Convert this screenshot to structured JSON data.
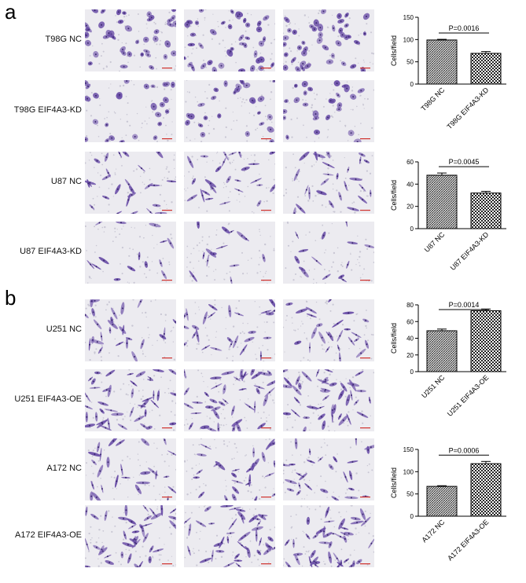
{
  "panels": [
    {
      "letter": "a",
      "rows": [
        {
          "label": "T98G NC",
          "density": "high",
          "shape": "round"
        },
        {
          "label": "T98G EIF4A3-KD",
          "density": "medium",
          "shape": "round"
        },
        {
          "label": "U87 NC",
          "density": "medium",
          "shape": "spindle"
        },
        {
          "label": "U87 EIF4A3-KD",
          "density": "low",
          "shape": "spindle"
        }
      ]
    },
    {
      "letter": "b",
      "rows": [
        {
          "label": "U251 NC",
          "density": "medium",
          "shape": "spindle"
        },
        {
          "label": "U251 EIF4A3-OE",
          "density": "high",
          "shape": "spindle"
        },
        {
          "label": "A172 NC",
          "density": "medium",
          "shape": "spindle"
        },
        {
          "label": "A172 EIF4A3-OE",
          "density": "high",
          "shape": "spindle"
        }
      ]
    }
  ],
  "colors": {
    "stain": "#6b4fa8",
    "background": "#ecebf0",
    "scale_bar": "#d0312d"
  },
  "chart_data": [
    {
      "type": "bar",
      "categories": [
        "T98G NC",
        "T98G EIF4A3-KD"
      ],
      "values": [
        99,
        69
      ],
      "errors": [
        1.5,
        4
      ],
      "ylabel": "Cells/field",
      "ylim": [
        0,
        150
      ],
      "yticks": [
        "0",
        "50",
        "100",
        "150"
      ],
      "annotation": "P=0.0016",
      "patterns": [
        "dense-hatch",
        "check"
      ]
    },
    {
      "type": "bar",
      "categories": [
        "U87 NC",
        "U87 EIF4A3-KD"
      ],
      "values": [
        48,
        32
      ],
      "errors": [
        2,
        1.5
      ],
      "ylabel": "Cells/field",
      "ylim": [
        0,
        60
      ],
      "yticks": [
        "0",
        "20",
        "40",
        "60"
      ],
      "annotation": "P=0.0045",
      "patterns": [
        "dense-hatch",
        "check"
      ]
    },
    {
      "type": "bar",
      "categories": [
        "U251 NC",
        "U251 EIF4A3-OE"
      ],
      "values": [
        49,
        73
      ],
      "errors": [
        2,
        2
      ],
      "ylabel": "Cells/field",
      "ylim": [
        0,
        80
      ],
      "yticks": [
        "0",
        "20",
        "40",
        "60",
        "80"
      ],
      "annotation": "P=0.0014",
      "patterns": [
        "dense-hatch",
        "check"
      ]
    },
    {
      "type": "bar",
      "categories": [
        "A172 NC",
        "A172 EIF4A3-OE"
      ],
      "values": [
        67,
        118
      ],
      "errors": [
        1.5,
        5
      ],
      "ylabel": "Cells/field",
      "ylim": [
        0,
        150
      ],
      "yticks": [
        "0",
        "50",
        "100",
        "150"
      ],
      "annotation": "P=0.0006",
      "patterns": [
        "dense-hatch",
        "check"
      ]
    }
  ]
}
